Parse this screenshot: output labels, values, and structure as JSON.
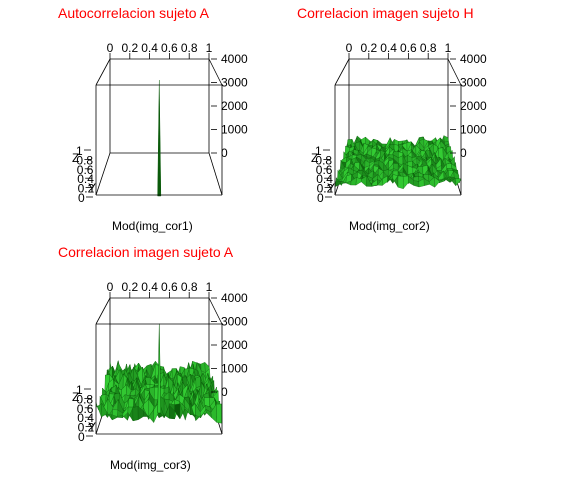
{
  "axis_colors": {
    "frame": "#000000",
    "surface_light": "#33cc33",
    "surface_dark": "#0a5a0a",
    "title": "#ff0000"
  },
  "chart_data": [
    {
      "type": "surface",
      "title": "Autocorrelacion sujeto A",
      "xlabel": "Mod(img_cor1)",
      "top_ticks": [
        "0",
        "0.2",
        "0.4",
        "0.6",
        "0.8",
        "1"
      ],
      "z_ticks": [
        "0",
        "1000",
        "2000",
        "3000",
        "4000"
      ],
      "y_ticks": [
        "0",
        "0.2",
        "0.4",
        "0.6",
        "0.8",
        "1"
      ],
      "y_axis_letter": "Y",
      "z_axis_letter": "Z",
      "zlim": [
        0,
        4000
      ],
      "surface": {
        "baseline_level": 0,
        "noise_amplitude": 0,
        "peak_value": 4000
      }
    },
    {
      "type": "surface",
      "title": "Correlacion imagen sujeto H",
      "xlabel": "Mod(img_cor2)",
      "top_ticks": [
        "0",
        "0.2",
        "0.4",
        "0.6",
        "0.8",
        "1"
      ],
      "z_ticks": [
        "0",
        "1000",
        "2000",
        "3000",
        "4000"
      ],
      "y_ticks": [
        "0",
        "0.2",
        "0.4",
        "0.6",
        "0.8",
        "1"
      ],
      "y_axis_letter": "Y",
      "z_axis_letter": "Z",
      "zlim": [
        0,
        4000
      ],
      "surface": {
        "baseline_level": 500,
        "noise_amplitude": 250,
        "peak_value": 0
      }
    },
    {
      "type": "surface",
      "title": "Correlacion imagen sujeto A",
      "xlabel": "Mod(img_cor3)",
      "top_ticks": [
        "0",
        "0.2",
        "0.4",
        "0.6",
        "0.8",
        "1"
      ],
      "z_ticks": [
        "0",
        "1000",
        "2000",
        "3000",
        "4000"
      ],
      "y_ticks": [
        "0",
        "0.2",
        "0.4",
        "0.6",
        "0.8",
        "1"
      ],
      "y_axis_letter": "Y",
      "z_axis_letter": "Z",
      "zlim": [
        0,
        4000
      ],
      "surface": {
        "baseline_level": 900,
        "noise_amplitude": 450,
        "peak_value": 3800
      }
    }
  ]
}
